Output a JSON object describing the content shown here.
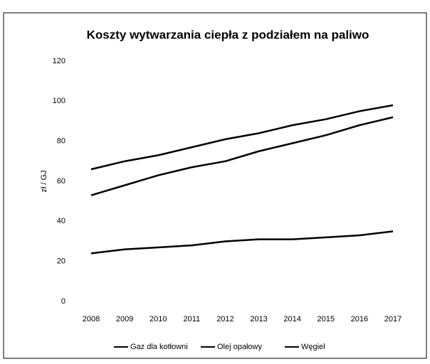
{
  "chart_data": {
    "type": "line",
    "title": "Koszty wytwarzania ciepła z podziałem na paliwo",
    "y_label": "zł / GJ",
    "x": [
      "2008",
      "2009",
      "2010",
      "2011",
      "2012",
      "2013",
      "2014",
      "2015",
      "2016",
      "2017"
    ],
    "series": [
      {
        "name": "Gaz dla kotłowni",
        "color": "#000000",
        "values": [
          53,
          58,
          63,
          67,
          70,
          75,
          79,
          83,
          88,
          92
        ]
      },
      {
        "name": "Olej opałowy",
        "color": "#000000",
        "values": [
          66,
          70,
          73,
          77,
          81,
          84,
          88,
          91,
          95,
          98
        ]
      },
      {
        "name": "Węgiel",
        "color": "#000000",
        "values": [
          24,
          26,
          27,
          28,
          30,
          31,
          31,
          32,
          33,
          35
        ]
      }
    ],
    "ylim": [
      0,
      120
    ],
    "yticks": [
      0,
      20,
      40,
      60,
      80,
      100,
      120
    ],
    "grid": false,
    "legend": "bottom"
  }
}
